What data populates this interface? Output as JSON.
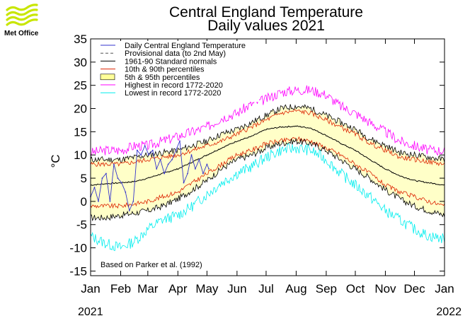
{
  "logo": {
    "text": "Met Office",
    "icon": "met-office-wave-logo",
    "color": "#c8e600"
  },
  "chart_data": {
    "type": "line",
    "title": "Central England Temperature",
    "subtitle": "Daily values 2021",
    "ylabel": "°C",
    "xlabel": "",
    "ylim": [
      -16,
      35
    ],
    "yticks": [
      35,
      30,
      25,
      20,
      15,
      10,
      5,
      0,
      -5,
      -10,
      -15
    ],
    "xlim": [
      0,
      365
    ],
    "month_labels": [
      "Jan",
      "Feb",
      "Mar",
      "Apr",
      "May",
      "Jun",
      "Jul",
      "Aug",
      "Sep",
      "Oct",
      "Nov",
      "Dec",
      "Jan"
    ],
    "month_starts": [
      0,
      31,
      59,
      90,
      120,
      151,
      181,
      212,
      243,
      273,
      304,
      334,
      365
    ],
    "year_start": "2021",
    "year_end": "2022",
    "annotation": "Based on Parker et al. (1992)",
    "grid": false,
    "legend_position": "top-left",
    "legend": [
      {
        "label": "Daily Central England Temperature",
        "color": "#3333cc",
        "style": "line"
      },
      {
        "label": "Provisional data (to 2nd May)",
        "color": "#555555",
        "style": "dashed"
      },
      {
        "label": "1961-90 Standard normals",
        "color": "#000000",
        "style": "line"
      },
      {
        "label": "10th & 90th percentiles",
        "color": "#dd2200",
        "style": "line"
      },
      {
        "label": "5th & 95th percentiles",
        "color": "#ffff99",
        "style": "box"
      },
      {
        "label": "Highest in record 1772-2020",
        "color": "#ff00ff",
        "style": "line"
      },
      {
        "label": "Lowest in record 1772-2020",
        "color": "#00eeee",
        "style": "line"
      }
    ],
    "climatology_days": [
      0,
      15,
      31,
      46,
      59,
      74,
      90,
      105,
      120,
      135,
      151,
      166,
      181,
      196,
      212,
      227,
      243,
      258,
      273,
      288,
      304,
      319,
      334,
      349,
      365
    ],
    "series": [
      {
        "name": "Highest in record 1772-2020",
        "color": "#ff00ff",
        "values": [
          10.5,
          11,
          11,
          12,
          12,
          13,
          14,
          15,
          16,
          18,
          19,
          21,
          22,
          23.5,
          24,
          24,
          23,
          20.5,
          19,
          17,
          15,
          13,
          12,
          11,
          11
        ]
      },
      {
        "name": "95th percentile",
        "color": "#000000",
        "values": [
          9,
          9,
          9,
          9.5,
          10,
          10.5,
          11,
          12,
          13,
          14.5,
          15.5,
          17,
          18.5,
          20,
          20.5,
          20,
          18.5,
          17,
          15.5,
          13.5,
          12,
          10.5,
          10,
          9.5,
          9
        ]
      },
      {
        "name": "90th percentile",
        "color": "#dd2200",
        "values": [
          8,
          8,
          8,
          8.5,
          9,
          9.5,
          10,
          11,
          12,
          13,
          14.5,
          16,
          17.5,
          19,
          19.5,
          19,
          17.5,
          16,
          14.5,
          12.5,
          11,
          9.5,
          9,
          8.5,
          8
        ]
      },
      {
        "name": "1961-90 Standard normals",
        "color": "#000000",
        "values": [
          3.5,
          3.8,
          4,
          4.3,
          5,
          6,
          7,
          8.5,
          10,
          11.5,
          13,
          14,
          15.5,
          16,
          16.2,
          15.8,
          14.2,
          12.5,
          11,
          9,
          7,
          5.5,
          4.5,
          4,
          3.5
        ]
      },
      {
        "name": "10th percentile",
        "color": "#dd2200",
        "values": [
          -1,
          -1,
          -1,
          -0.5,
          0,
          1,
          2,
          4,
          6,
          8,
          10,
          11,
          12.5,
          13,
          13.5,
          13,
          11.5,
          10,
          8,
          6,
          3.5,
          2,
          1,
          0,
          -1
        ]
      },
      {
        "name": "5th percentile",
        "color": "#000000",
        "values": [
          -3.5,
          -3.5,
          -3,
          -2.5,
          -2,
          -1,
          0.5,
          2.5,
          4.5,
          7,
          9,
          10,
          11.5,
          12.5,
          13,
          12.5,
          11,
          9,
          7,
          5,
          2.5,
          0.5,
          -1,
          -2,
          -3
        ]
      },
      {
        "name": "Lowest in record 1772-2020",
        "color": "#00eeee",
        "values": [
          -7.5,
          -9,
          -10,
          -8.5,
          -6,
          -4,
          -3,
          -1,
          1.5,
          4,
          6,
          7.5,
          9.5,
          11,
          11.5,
          11,
          9,
          6,
          3.5,
          1,
          -2,
          -4,
          -6,
          -7.5,
          -8
        ]
      },
      {
        "name": "Daily Central England Temperature",
        "color": "#3333cc",
        "x": [
          0,
          4,
          8,
          12,
          16,
          20,
          24,
          28,
          32,
          36,
          40,
          44,
          48,
          52,
          56,
          60,
          64,
          68,
          72,
          76,
          80,
          84,
          88,
          92,
          96,
          100,
          104,
          108,
          112,
          116,
          120,
          122
        ],
        "values": [
          1,
          3,
          0,
          5,
          6,
          0,
          8,
          5,
          4,
          2,
          -2,
          0,
          11,
          10,
          12,
          10,
          11,
          7,
          9,
          6,
          8,
          9,
          11,
          13,
          4,
          6,
          10,
          7,
          9,
          6,
          8,
          7
        ]
      }
    ]
  }
}
